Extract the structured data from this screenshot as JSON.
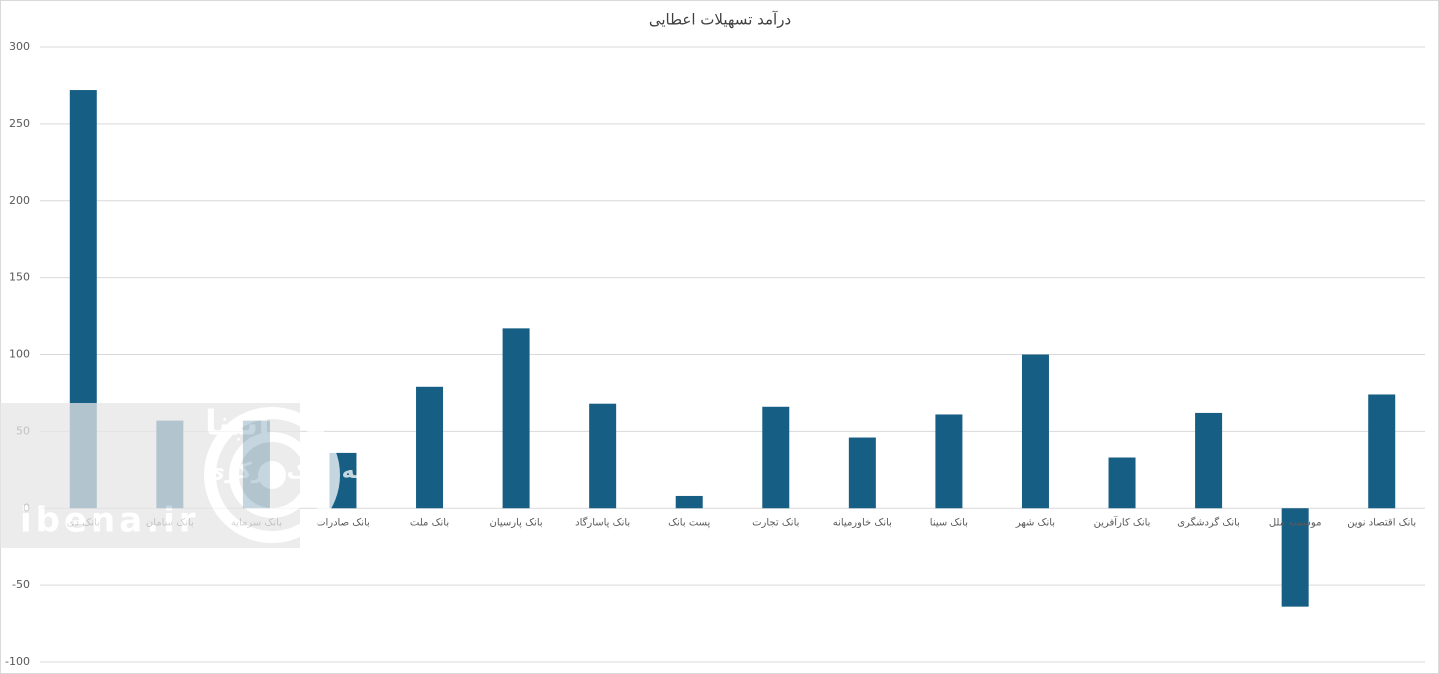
{
  "chart_data": {
    "type": "bar",
    "title": "درآمد تسهیلات اعطایی",
    "categories": [
      "بانک دی",
      "بانک سامان",
      "بانک سرمایه",
      "بانک صادرات",
      "بانک ملت",
      "بانک پارسیان",
      "بانک پاسارگاد",
      "پست بانک",
      "بانک تجارت",
      "بانک خاورمیانه",
      "بانک سینا",
      "بانک شهر",
      "بانک کارآفرین",
      "بانک گردشگری",
      "موسسه ملل",
      "بانک اقتصاد نوین"
    ],
    "values": [
      272,
      57,
      57,
      36,
      79,
      117,
      68,
      8,
      66,
      46,
      61,
      100,
      33,
      62,
      -64,
      74
    ],
    "color": "#175e84",
    "ylim": [
      -100,
      300
    ],
    "yticks": [
      -100,
      -50,
      0,
      50,
      100,
      150,
      200,
      250,
      300
    ],
    "grid": true
  },
  "watermark": {
    "name": "ایبنا",
    "tagline": "رسانه بانک مرکزی",
    "site": "ibena.ir"
  }
}
